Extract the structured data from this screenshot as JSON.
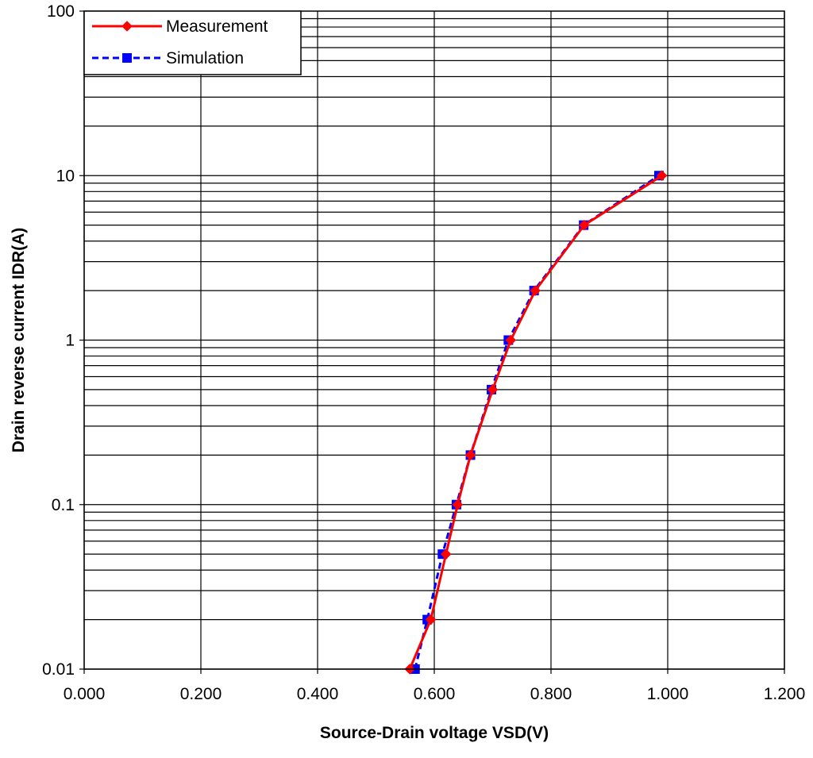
{
  "chart_data": {
    "type": "line",
    "title": "",
    "xlabel": "Source-Drain voltage VSD(V)",
    "ylabel": "Drain reverse current IDR(A)",
    "x_scale": "linear",
    "y_scale": "log",
    "xlim": [
      0,
      1.2
    ],
    "ylim": [
      0.01,
      100
    ],
    "x_ticks": [
      0,
      0.2,
      0.4,
      0.6,
      0.8,
      1.0,
      1.2
    ],
    "x_tick_labels": [
      "0.000",
      "0.200",
      "0.400",
      "0.600",
      "0.800",
      "1.000",
      "1.200"
    ],
    "y_ticks": [
      0.01,
      0.1,
      1,
      10,
      100
    ],
    "y_tick_labels": [
      "0.01",
      "0.1",
      "1",
      "10",
      "100"
    ],
    "grid": "major vertical, major and minor horizontal",
    "legend_position": "top-left",
    "series": [
      {
        "name": "Measurement",
        "color": "#ff0000",
        "line_style": "solid",
        "marker": "diamond",
        "points": [
          {
            "x": 0.558,
            "y": 0.01
          },
          {
            "x": 0.594,
            "y": 0.02
          },
          {
            "x": 0.62,
            "y": 0.05
          },
          {
            "x": 0.64,
            "y": 0.1
          },
          {
            "x": 0.662,
            "y": 0.2
          },
          {
            "x": 0.7,
            "y": 0.5
          },
          {
            "x": 0.731,
            "y": 1
          },
          {
            "x": 0.773,
            "y": 2
          },
          {
            "x": 0.857,
            "y": 5
          },
          {
            "x": 0.99,
            "y": 10
          }
        ]
      },
      {
        "name": "Simulation",
        "color": "#0000ff",
        "line_style": "dashed",
        "marker": "square",
        "points": [
          {
            "x": 0.567,
            "y": 0.01
          },
          {
            "x": 0.588,
            "y": 0.02
          },
          {
            "x": 0.614,
            "y": 0.05
          },
          {
            "x": 0.638,
            "y": 0.1
          },
          {
            "x": 0.662,
            "y": 0.2
          },
          {
            "x": 0.698,
            "y": 0.5
          },
          {
            "x": 0.727,
            "y": 1
          },
          {
            "x": 0.771,
            "y": 2
          },
          {
            "x": 0.856,
            "y": 5
          },
          {
            "x": 0.985,
            "y": 10
          }
        ]
      }
    ]
  }
}
